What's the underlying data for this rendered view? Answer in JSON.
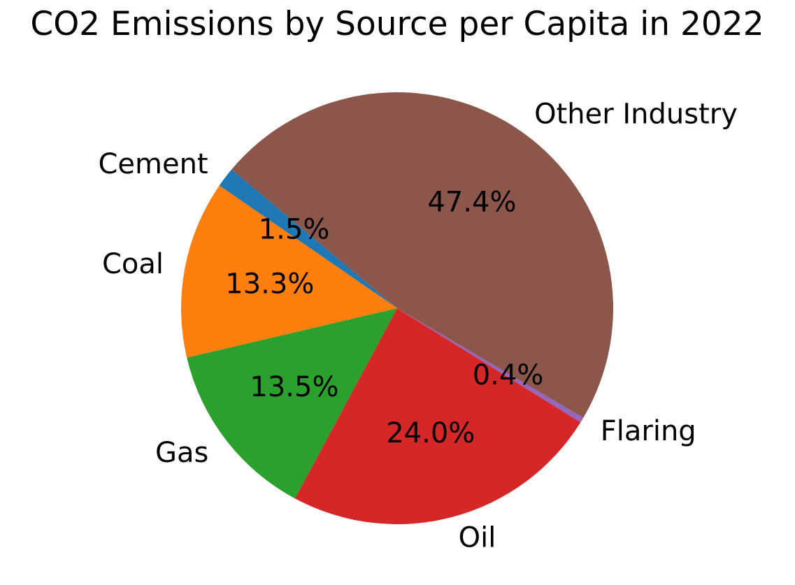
{
  "chart_data": {
    "type": "pie",
    "title": "CO2 Emissions by Source per Capita in 2022",
    "slices": [
      {
        "label": "Cement",
        "value": 1.5,
        "percent_label": "1.5%",
        "color": "#1f77b4"
      },
      {
        "label": "Coal",
        "value": 13.3,
        "percent_label": "13.3%",
        "color": "#ff7f0e"
      },
      {
        "label": "Gas",
        "value": 13.5,
        "percent_label": "13.5%",
        "color": "#2ca02c"
      },
      {
        "label": "Oil",
        "value": 24.0,
        "percent_label": "24.0%",
        "color": "#d62728"
      },
      {
        "label": "Flaring",
        "value": 0.4,
        "percent_label": "0.4%",
        "color": "#9467bd"
      },
      {
        "label": "Other Industry",
        "value": 47.4,
        "percent_label": "47.4%",
        "color": "#8c564b"
      }
    ],
    "start_angle_deg": 140,
    "direction": "counterclockwise",
    "legend": "none"
  }
}
